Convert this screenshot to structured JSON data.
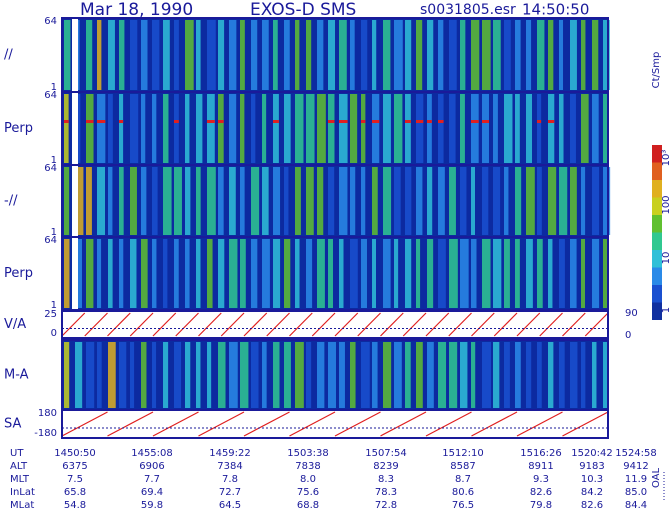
{
  "header": {
    "date": "Mar 18, 1990",
    "instrument": "EXOS-D SMS",
    "file": "s0031805.esr",
    "time": "14:50:50"
  },
  "panels": [
    {
      "label": "//",
      "ticks": [
        "64",
        "1"
      ]
    },
    {
      "label": "Perp",
      "ticks": [
        "64",
        "1"
      ]
    },
    {
      "label": "-//",
      "ticks": [
        "64",
        "1"
      ]
    },
    {
      "label": "Perp",
      "ticks": [
        "64",
        "1"
      ]
    },
    {
      "label": "V/A",
      "ticks": [
        "25",
        "0"
      ],
      "right_ticks": [
        "90",
        "0"
      ]
    },
    {
      "label": "M-A"
    },
    {
      "label": "SA",
      "ticks": [
        "180",
        "-180"
      ]
    }
  ],
  "colorbar": {
    "label": "Ct/Smp",
    "ticks": [
      "10³",
      "100",
      "10",
      "1"
    ]
  },
  "side_label": "OAL",
  "table": {
    "rows": [
      [
        "UT",
        "1450:50",
        "1455:08",
        "1459:22",
        "1503:38",
        "1507:54",
        "1512:10",
        "1516:26",
        "1520:42",
        "1524:58"
      ],
      [
        "ALT",
        "6375",
        "6906",
        "7384",
        "7838",
        "8239",
        "8587",
        "8911",
        "9183",
        "9412"
      ],
      [
        "MLT",
        "7.5",
        "7.7",
        "7.8",
        "8.0",
        "8.3",
        "8.7",
        "9.3",
        "10.3",
        "11.9"
      ],
      [
        "InLat",
        "65.8",
        "69.4",
        "72.7",
        "75.6",
        "78.3",
        "80.6",
        "82.6",
        "84.2",
        "85.0"
      ],
      [
        "MLat",
        "54.8",
        "59.8",
        "64.5",
        "68.8",
        "72.8",
        "76.5",
        "79.8",
        "82.6",
        "84.4"
      ]
    ]
  }
}
